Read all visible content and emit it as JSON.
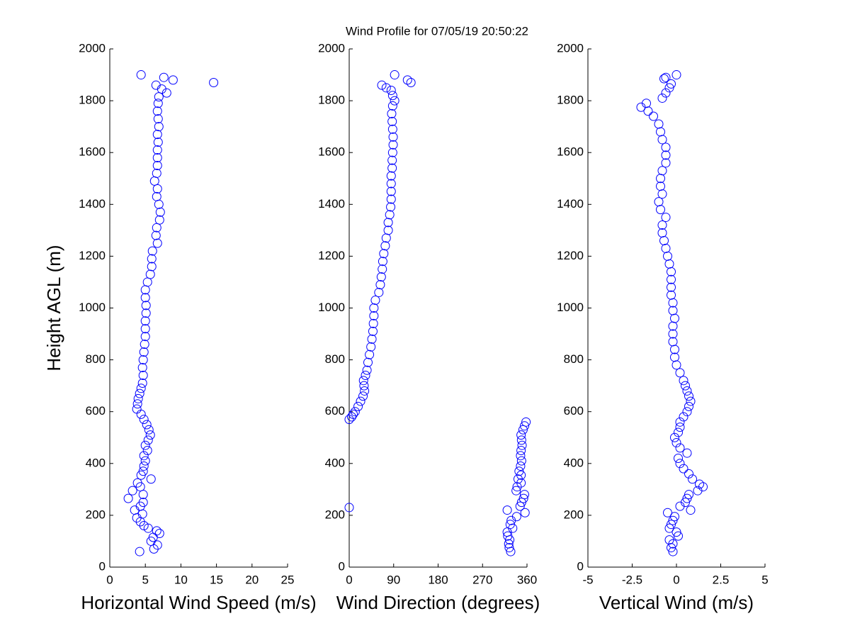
{
  "title": "Wind Profile for  07/05/19 20:50:22",
  "chart_data": [
    {
      "type": "scatter",
      "xlabel": "Horizontal Wind Speed (m/s)",
      "ylabel": "Height AGL (m)",
      "color": "#0000ff",
      "xlim": [
        0,
        25
      ],
      "xticks": [
        0,
        5,
        10,
        15,
        20,
        25
      ],
      "ylim": [
        0,
        2000
      ],
      "yticks": [
        0,
        200,
        400,
        600,
        800,
        1000,
        1200,
        1400,
        1600,
        1800,
        2000
      ],
      "x": [
        4.2,
        6.2,
        6.7,
        5.8,
        6.1,
        7,
        6.6,
        5.4,
        4.8,
        4.3,
        3.8,
        4.6,
        3.5,
        4.3,
        4.7,
        2.6,
        4.7,
        3.2,
        4.3,
        3.9,
        5.8,
        4.4,
        4.7,
        4.8,
        5,
        4.8,
        5.3,
        5,
        5.4,
        5.7,
        5.5,
        5.2,
        4.8,
        4.4,
        3.8,
        3.9,
        4,
        4.2,
        4.4,
        4.6,
        4.7,
        4.6,
        4.7,
        4.8,
        4.9,
        5,
        5,
        5,
        5.1,
        5.1,
        5,
        5,
        5.3,
        5.7,
        5.9,
        5.9,
        6,
        6.7,
        6.5,
        6.6,
        7,
        7.1,
        6.9,
        6.6,
        6.7,
        6.3,
        6.6,
        6.7,
        6.7,
        6.7,
        6.8,
        6.7,
        6.9,
        6.8,
        6.7,
        6.8,
        6.9,
        8,
        7.3,
        6.5,
        14.6,
        8.9,
        7.6,
        4.4
      ],
      "y": [
        60,
        70,
        85,
        100,
        115,
        130,
        140,
        150,
        160,
        175,
        190,
        205,
        220,
        235,
        250,
        265,
        280,
        295,
        310,
        325,
        340,
        355,
        370,
        390,
        410,
        430,
        450,
        470,
        490,
        510,
        530,
        550,
        570,
        590,
        610,
        630,
        650,
        670,
        690,
        710,
        740,
        770,
        800,
        830,
        860,
        890,
        920,
        950,
        980,
        1010,
        1040,
        1070,
        1100,
        1130,
        1160,
        1190,
        1220,
        1250,
        1280,
        1310,
        1340,
        1370,
        1400,
        1430,
        1460,
        1490,
        1520,
        1550,
        1580,
        1610,
        1640,
        1670,
        1700,
        1730,
        1760,
        1790,
        1815,
        1830,
        1845,
        1860,
        1870,
        1880,
        1890,
        1900
      ]
    },
    {
      "type": "scatter",
      "xlabel": "Wind Direction (degrees)",
      "color": "#0000ff",
      "xlim": [
        0,
        360
      ],
      "xticks": [
        0,
        90,
        180,
        270,
        360
      ],
      "ylim": [
        0,
        2000
      ],
      "yticks": [
        0,
        200,
        400,
        600,
        800,
        1000,
        1200,
        1400,
        1600,
        1800,
        2000
      ],
      "x": [
        327,
        324,
        323,
        325,
        321,
        320,
        331,
        326,
        328,
        339,
        356,
        320,
        0,
        346,
        349,
        353,
        355,
        338,
        340,
        348,
        342,
        348,
        344,
        347,
        349,
        347,
        348,
        350,
        349,
        348,
        352,
        355,
        358,
        0,
        5,
        8,
        12,
        18,
        23,
        28,
        31,
        30,
        29,
        33,
        36,
        38,
        41,
        44,
        46,
        48,
        49,
        50,
        50,
        53,
        60,
        63,
        65,
        67,
        68,
        70,
        73,
        75,
        79,
        79,
        82,
        84,
        85,
        85,
        85,
        85,
        87,
        87,
        88,
        89,
        89,
        88,
        87,
        86,
        88,
        92,
        88,
        85,
        75,
        66,
        125,
        118,
        92
      ],
      "y": [
        60,
        75,
        90,
        105,
        120,
        135,
        150,
        165,
        180,
        195,
        210,
        220,
        230,
        235,
        250,
        265,
        280,
        295,
        310,
        325,
        340,
        355,
        370,
        390,
        410,
        430,
        450,
        470,
        490,
        510,
        530,
        545,
        560,
        570,
        580,
        590,
        600,
        620,
        640,
        660,
        680,
        700,
        720,
        740,
        760,
        790,
        820,
        850,
        880,
        910,
        940,
        970,
        1000,
        1030,
        1060,
        1090,
        1120,
        1150,
        1180,
        1210,
        1240,
        1270,
        1300,
        1330,
        1360,
        1390,
        1420,
        1450,
        1480,
        1510,
        1540,
        1570,
        1600,
        1630,
        1660,
        1690,
        1720,
        1750,
        1780,
        1800,
        1820,
        1840,
        1850,
        1860,
        1870,
        1880,
        1900
      ]
    },
    {
      "type": "scatter",
      "xlabel": "Vertical Wind (m/s)",
      "color": "#0000ff",
      "xlim": [
        -5,
        5
      ],
      "xticks": [
        -5,
        -2.5,
        0,
        2.5,
        5
      ],
      "ylim": [
        0,
        2000
      ],
      "yticks": [
        0,
        200,
        400,
        600,
        800,
        1000,
        1200,
        1400,
        1600,
        1800,
        2000
      ],
      "x": [
        -0.2,
        -0.3,
        -0.2,
        -0.4,
        0.1,
        0,
        -0.4,
        -0.3,
        -0.2,
        -0.1,
        -0.5,
        0.8,
        0.2,
        0.5,
        0.6,
        0.7,
        1.2,
        1.5,
        1.3,
        0.9,
        0.7,
        0.4,
        0.2,
        0.1,
        0.6,
        0.2,
        0,
        -0.1,
        0.1,
        0.2,
        0.2,
        0.4,
        0.6,
        0.7,
        0.8,
        0.7,
        0.6,
        0.5,
        0.4,
        0.2,
        0,
        -0.1,
        -0.1,
        -0.2,
        -0.2,
        -0.2,
        -0.1,
        -0.2,
        -0.2,
        -0.3,
        -0.3,
        -0.3,
        -0.3,
        -0.4,
        -0.5,
        -0.6,
        -0.7,
        -0.8,
        -0.8,
        -0.6,
        -0.9,
        -1,
        -0.8,
        -0.9,
        -0.9,
        -0.8,
        -0.6,
        -0.6,
        -0.6,
        -0.8,
        -0.9,
        -1,
        -1.3,
        -1.6,
        -2,
        -1.7,
        -0.8,
        -0.6,
        -0.4,
        -0.3,
        -0.7,
        -0.6,
        0
      ],
      "y": [
        60,
        75,
        90,
        105,
        120,
        135,
        150,
        165,
        180,
        195,
        210,
        220,
        235,
        250,
        265,
        280,
        295,
        310,
        320,
        340,
        360,
        380,
        400,
        420,
        440,
        460,
        480,
        500,
        520,
        540,
        560,
        580,
        600,
        620,
        640,
        660,
        680,
        700,
        720,
        750,
        780,
        810,
        840,
        870,
        900,
        930,
        960,
        990,
        1020,
        1050,
        1080,
        1110,
        1140,
        1170,
        1200,
        1230,
        1260,
        1290,
        1320,
        1350,
        1380,
        1410,
        1440,
        1470,
        1500,
        1530,
        1560,
        1590,
        1620,
        1650,
        1680,
        1710,
        1740,
        1760,
        1775,
        1790,
        1810,
        1830,
        1850,
        1865,
        1885,
        1890,
        1900
      ]
    }
  ]
}
